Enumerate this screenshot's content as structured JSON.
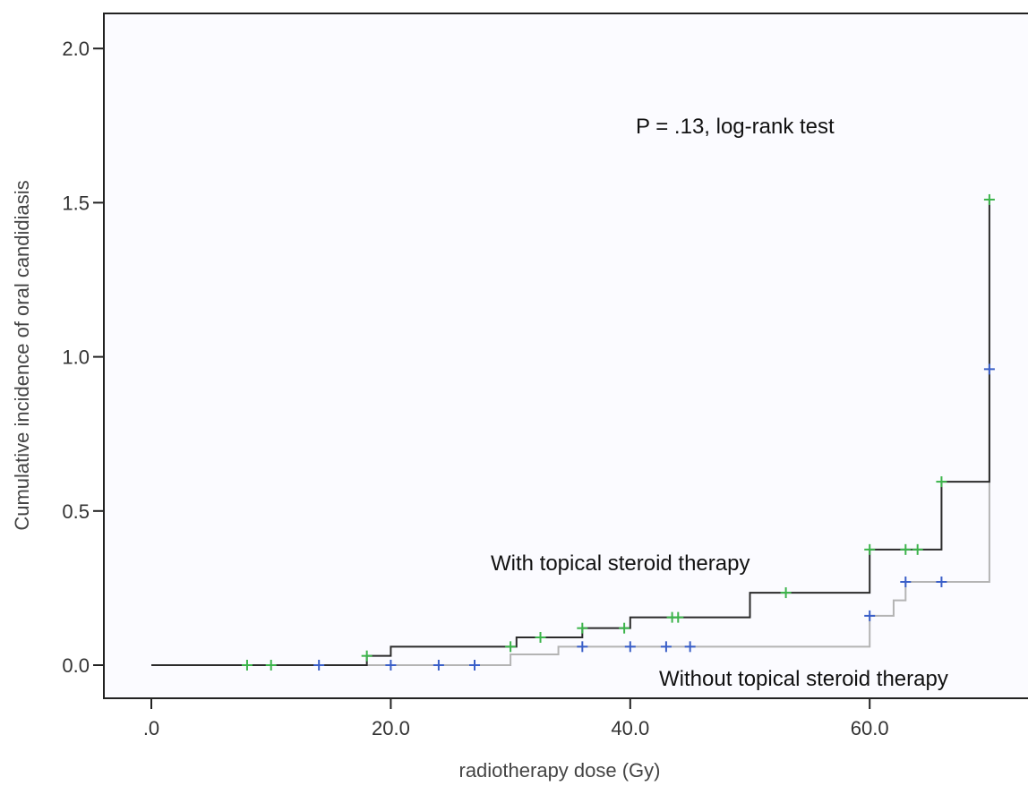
{
  "chart_data": {
    "type": "line",
    "title": "",
    "xlabel": "radiotherapy dose (Gy)",
    "ylabel": "Cumulative incidence of oral candidiasis",
    "xlim": [
      -5,
      72
    ],
    "ylim": [
      -0.11,
      2.1
    ],
    "x_ticks": [
      0,
      20,
      40,
      60
    ],
    "x_tick_labels": [
      ".0",
      "20.0",
      "40.0",
      "60.0"
    ],
    "y_ticks": [
      0,
      0.5,
      1.0,
      1.5,
      2.0
    ],
    "y_tick_labels": [
      "0.0",
      "0.5",
      "1.0",
      "1.5",
      "2.0"
    ],
    "grid": false,
    "legend": "none",
    "annotation": "P = .13, log-rank test",
    "colors": {
      "with_line": "#2b2b2b",
      "without_line": "#b4b4b4",
      "with_censor": "#3cb44b",
      "without_censor": "#3a5fc8"
    },
    "series": [
      {
        "label": "With topical steroid therapy",
        "steps": [
          [
            0,
            0
          ],
          [
            18,
            0.03
          ],
          [
            20,
            0.06
          ],
          [
            30.5,
            0.09
          ],
          [
            36,
            0.12
          ],
          [
            40,
            0.155
          ],
          [
            50,
            0.235
          ],
          [
            60,
            0.375
          ],
          [
            66,
            0.595
          ],
          [
            70,
            1.51
          ]
        ],
        "censored": [
          [
            8,
            0
          ],
          [
            10,
            0
          ],
          [
            18,
            0.03
          ],
          [
            30,
            0.06
          ],
          [
            32.5,
            0.09
          ],
          [
            36,
            0.12
          ],
          [
            39.5,
            0.12
          ],
          [
            43.5,
            0.155
          ],
          [
            44,
            0.155
          ],
          [
            53,
            0.235
          ],
          [
            60,
            0.375
          ],
          [
            63,
            0.375
          ],
          [
            64,
            0.375
          ],
          [
            66,
            0.595
          ],
          [
            70,
            1.51
          ]
        ]
      },
      {
        "label": "Without topical steroid therapy",
        "steps": [
          [
            0,
            0
          ],
          [
            30,
            0.035
          ],
          [
            34,
            0.06
          ],
          [
            60,
            0.16
          ],
          [
            62,
            0.21
          ],
          [
            63,
            0.27
          ],
          [
            70,
            0.96
          ]
        ],
        "censored": [
          [
            14,
            0
          ],
          [
            20,
            0
          ],
          [
            24,
            0
          ],
          [
            27,
            0
          ],
          [
            36,
            0.06
          ],
          [
            40,
            0.06
          ],
          [
            43,
            0.06
          ],
          [
            45,
            0.06
          ],
          [
            60,
            0.16
          ],
          [
            63,
            0.27
          ],
          [
            66,
            0.27
          ],
          [
            70,
            0.96
          ]
        ]
      }
    ]
  }
}
